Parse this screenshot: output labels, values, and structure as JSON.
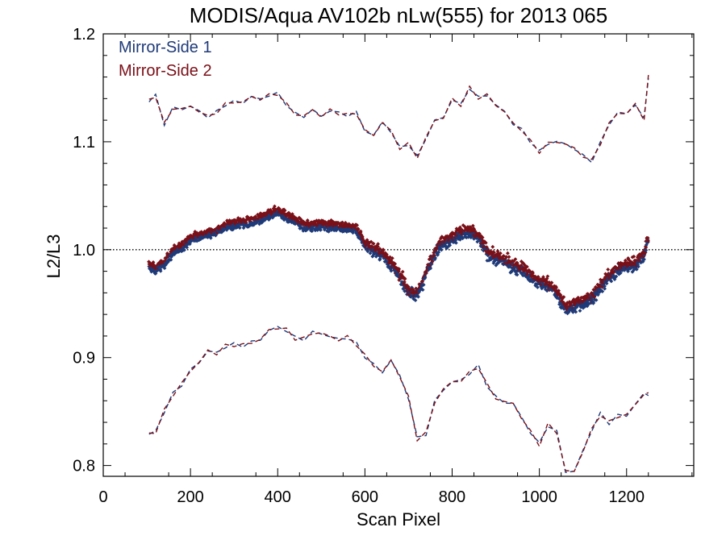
{
  "chart_data": {
    "type": "scatter",
    "title": "MODIS/Aqua AV102b nLw(555) for 2013 065",
    "xlabel": "Scan Pixel",
    "ylabel": "L2/L3",
    "xlim": [
      0,
      1354
    ],
    "ylim": [
      0.79,
      1.2
    ],
    "xticks": [
      0,
      200,
      400,
      600,
      800,
      1000,
      1200
    ],
    "yticks": [
      0.8,
      0.9,
      1.0,
      1.1,
      1.2
    ],
    "ytick_labels": [
      "0.8",
      "0.9",
      "1.0",
      "1.1",
      "1.2"
    ],
    "reference_line": 1.0,
    "legend_placement": "top-left",
    "series": [
      {
        "name": "Mirror-Side 1",
        "color": "#1f3a78"
      },
      {
        "name": "Mirror-Side 2",
        "color": "#7a1018"
      }
    ],
    "mean_curve": {
      "x": [
        105,
        120,
        140,
        160,
        180,
        200,
        220,
        240,
        260,
        280,
        300,
        320,
        340,
        360,
        380,
        400,
        420,
        440,
        460,
        480,
        500,
        520,
        540,
        560,
        580,
        600,
        620,
        640,
        660,
        680,
        700,
        720,
        740,
        760,
        780,
        800,
        820,
        840,
        860,
        880,
        900,
        920,
        940,
        960,
        980,
        1000,
        1020,
        1040,
        1060,
        1080,
        1100,
        1120,
        1140,
        1160,
        1180,
        1200,
        1220,
        1240,
        1250
      ],
      "y": [
        0.985,
        0.982,
        0.988,
        0.998,
        1.003,
        1.01,
        1.013,
        1.015,
        1.017,
        1.022,
        1.024,
        1.025,
        1.026,
        1.028,
        1.032,
        1.036,
        1.031,
        1.027,
        1.022,
        1.022,
        1.023,
        1.022,
        1.022,
        1.02,
        1.02,
        1.005,
        1.0,
        0.996,
        0.987,
        0.975,
        0.962,
        0.958,
        0.978,
        0.998,
        1.008,
        1.01,
        1.016,
        1.016,
        1.012,
        0.998,
        0.992,
        0.99,
        0.985,
        0.983,
        0.975,
        0.97,
        0.968,
        0.96,
        0.946,
        0.948,
        0.952,
        0.955,
        0.965,
        0.975,
        0.982,
        0.985,
        0.987,
        0.995,
        1.012
      ]
    },
    "upper_envelope": {
      "x": [
        105,
        120,
        140,
        160,
        180,
        200,
        220,
        240,
        260,
        280,
        300,
        320,
        340,
        360,
        380,
        400,
        420,
        440,
        460,
        480,
        500,
        520,
        540,
        560,
        580,
        600,
        620,
        640,
        660,
        680,
        700,
        720,
        740,
        760,
        780,
        800,
        820,
        840,
        860,
        880,
        900,
        920,
        940,
        960,
        980,
        1000,
        1020,
        1040,
        1060,
        1080,
        1100,
        1120,
        1140,
        1160,
        1180,
        1200,
        1220,
        1240,
        1250
      ],
      "y": [
        1.137,
        1.143,
        1.117,
        1.13,
        1.132,
        1.131,
        1.13,
        1.122,
        1.128,
        1.135,
        1.136,
        1.138,
        1.14,
        1.141,
        1.142,
        1.145,
        1.135,
        1.125,
        1.125,
        1.128,
        1.125,
        1.128,
        1.127,
        1.125,
        1.126,
        1.112,
        1.104,
        1.12,
        1.108,
        1.095,
        1.098,
        1.085,
        1.105,
        1.118,
        1.124,
        1.138,
        1.135,
        1.15,
        1.14,
        1.145,
        1.132,
        1.13,
        1.115,
        1.112,
        1.1,
        1.09,
        1.1,
        1.098,
        1.1,
        1.092,
        1.088,
        1.082,
        1.098,
        1.118,
        1.125,
        1.128,
        1.133,
        1.122,
        1.16
      ]
    },
    "lower_envelope": {
      "x": [
        105,
        120,
        140,
        160,
        180,
        200,
        220,
        240,
        260,
        280,
        300,
        320,
        340,
        360,
        380,
        400,
        420,
        440,
        460,
        480,
        500,
        520,
        540,
        560,
        580,
        600,
        620,
        640,
        660,
        680,
        700,
        720,
        740,
        760,
        780,
        800,
        820,
        840,
        860,
        880,
        900,
        920,
        940,
        960,
        980,
        1000,
        1020,
        1040,
        1060,
        1080,
        1100,
        1120,
        1140,
        1160,
        1180,
        1200,
        1220,
        1240,
        1250
      ],
      "y": [
        0.828,
        0.832,
        0.85,
        0.866,
        0.876,
        0.887,
        0.897,
        0.905,
        0.905,
        0.91,
        0.912,
        0.912,
        0.913,
        0.918,
        0.924,
        0.929,
        0.925,
        0.918,
        0.918,
        0.922,
        0.924,
        0.918,
        0.918,
        0.918,
        0.913,
        0.902,
        0.892,
        0.888,
        0.896,
        0.884,
        0.862,
        0.825,
        0.83,
        0.858,
        0.872,
        0.876,
        0.88,
        0.885,
        0.892,
        0.875,
        0.862,
        0.86,
        0.856,
        0.845,
        0.83,
        0.82,
        0.838,
        0.83,
        0.796,
        0.793,
        0.815,
        0.832,
        0.848,
        0.84,
        0.845,
        0.848,
        0.855,
        0.868,
        0.865
      ]
    }
  }
}
